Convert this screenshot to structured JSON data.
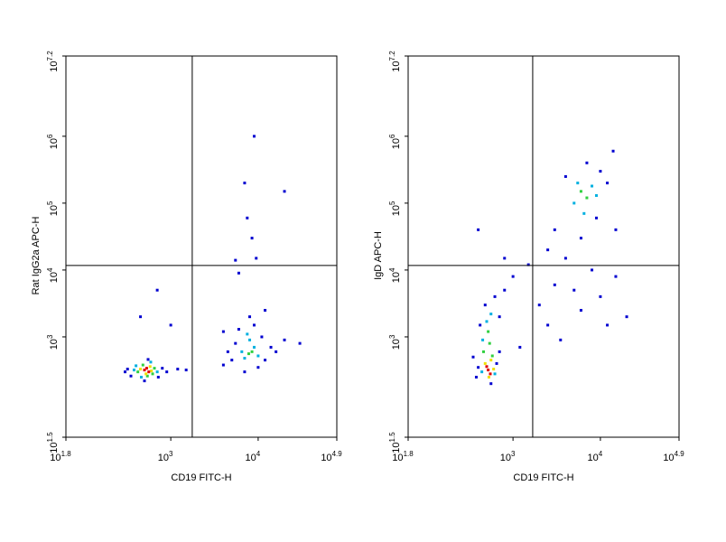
{
  "chart_data": [
    {
      "type": "scatter",
      "x_label": "CD19 FITC-H",
      "y_label": "Rat IgG2a APC-H",
      "log": true,
      "xlim": [
        63.0957,
        79432.8
      ],
      "ylim": [
        31.6228,
        15848932
      ],
      "xticks": [
        {
          "value": 63.0957,
          "label": "10",
          "exponent": "1.8"
        },
        {
          "value": 1000,
          "label": "10",
          "exponent": "3"
        },
        {
          "value": 10000,
          "label": "10",
          "exponent": "4"
        },
        {
          "value": 79432.8,
          "label": "10",
          "exponent": "4.9"
        }
      ],
      "yticks": [
        {
          "value": 31.6228,
          "label": "10",
          "exponent": "1.5"
        },
        {
          "value": 1000,
          "label": "10",
          "exponent": "3"
        },
        {
          "value": 10000,
          "label": "10",
          "exponent": "4"
        },
        {
          "value": 100000,
          "label": "10",
          "exponent": "5"
        },
        {
          "value": 1000000,
          "label": "10",
          "exponent": "6"
        },
        {
          "value": 15848932,
          "label": "10",
          "exponent": "7.2"
        }
      ],
      "gates": {
        "x": 1760,
        "y": 11700
      },
      "series": [
        {
          "color": "#0000d0",
          "x": [
            320,
            800,
            350,
            720,
            500,
            550,
            300,
            900,
            1200,
            1500,
            5000,
            4000,
            12000,
            14000,
            6000,
            9000,
            11000,
            5500,
            16000,
            20000,
            4500,
            8000,
            7000,
            10000,
            30000,
            8500,
            7000,
            9000,
            20000,
            7500,
            9500,
            6000,
            5500,
            700,
            450,
            1000,
            4000,
            12000
          ],
          "values": [
            330,
            340,
            260,
            250,
            220,
            460,
            300,
            300,
            330,
            320,
            450,
            380,
            450,
            700,
            1300,
            1500,
            1000,
            800,
            600,
            900,
            600,
            2000,
            300,
            350,
            800,
            30000,
            200000,
            1000000,
            150000,
            60000,
            15000,
            9000,
            14000,
            5000,
            2000,
            1500,
            1200,
            2500
          ]
        },
        {
          "color": "#00b0e0",
          "x": [
            380,
            700,
            460,
            590,
            400,
            7000,
            9000,
            8000,
            6500,
            10000,
            7500
          ],
          "values": [
            320,
            300,
            250,
            420,
            370,
            480,
            700,
            900,
            600,
            520,
            1100
          ]
        },
        {
          "color": "#30d040",
          "x": [
            420,
            650,
            480,
            540,
            620,
            7800,
            8500
          ],
          "values": [
            300,
            340,
            380,
            260,
            280,
            560,
            600
          ]
        },
        {
          "color": "#f0e000",
          "x": [
            450,
            600,
            520,
            580
          ],
          "values": [
            330,
            310,
            280,
            360
          ]
        },
        {
          "color": "#e00000",
          "x": [
            500,
            560,
            530
          ],
          "values": [
            320,
            300,
            340
          ]
        }
      ]
    },
    {
      "type": "scatter",
      "x_label": "CD19 FITC-H",
      "y_label": "IgD APC-H",
      "log": true,
      "xlim": [
        63.0957,
        79432.8
      ],
      "ylim": [
        31.6228,
        15848932
      ],
      "xticks": [
        {
          "value": 63.0957,
          "label": "10",
          "exponent": "1.8"
        },
        {
          "value": 1000,
          "label": "10",
          "exponent": "3"
        },
        {
          "value": 10000,
          "label": "10",
          "exponent": "4"
        },
        {
          "value": 79432.8,
          "label": "10",
          "exponent": "4.9"
        }
      ],
      "yticks": [
        {
          "value": 31.6228,
          "label": "10",
          "exponent": "1.5"
        },
        {
          "value": 1000,
          "label": "10",
          "exponent": "3"
        },
        {
          "value": 10000,
          "label": "10",
          "exponent": "4"
        },
        {
          "value": 100000,
          "label": "10",
          "exponent": "5"
        },
        {
          "value": 1000000,
          "label": "10",
          "exponent": "6"
        },
        {
          "value": 15848932,
          "label": "10",
          "exponent": "7.2"
        }
      ],
      "gates": {
        "x": 1680,
        "y": 11700
      },
      "series": [
        {
          "color": "#0000d0",
          "x": [
            400,
            650,
            380,
            700,
            480,
            620,
            420,
            700,
            350,
            560,
            800,
            1000,
            1500,
            2500,
            3000,
            4000,
            10000,
            12000,
            9000,
            6000,
            4000,
            8000,
            3000,
            2000,
            15000,
            10000,
            20000,
            6000,
            3500,
            12000,
            15000,
            1200,
            2500,
            800,
            400,
            7000,
            14000,
            5000
          ],
          "values": [
            350,
            400,
            250,
            600,
            3000,
            4000,
            1500,
            2000,
            500,
            200,
            5000,
            8000,
            12000,
            20000,
            40000,
            250000,
            300000,
            200000,
            60000,
            30000,
            15000,
            10000,
            6000,
            3000,
            8000,
            4000,
            2000,
            2500,
            900,
            1500,
            40000,
            700,
            1500,
            15000,
            40000,
            400000,
            600000,
            5000
          ]
        },
        {
          "color": "#00b0e0",
          "x": [
            440,
            620,
            500,
            560,
            450,
            5000,
            8000,
            6500,
            5500,
            9000
          ],
          "values": [
            300,
            280,
            1700,
            2200,
            900,
            100000,
            180000,
            70000,
            200000,
            130000
          ]
        },
        {
          "color": "#30d040",
          "x": [
            460,
            540,
            520,
            580,
            6000,
            7000
          ],
          "values": [
            600,
            800,
            1200,
            520,
            150000,
            120000
          ]
        },
        {
          "color": "#f0e000",
          "x": [
            480,
            560,
            530,
            600
          ],
          "values": [
            400,
            450,
            250,
            330
          ]
        },
        {
          "color": "#e00000",
          "x": [
            520,
            550,
            500
          ],
          "values": [
            320,
            280,
            360
          ]
        }
      ]
    }
  ]
}
